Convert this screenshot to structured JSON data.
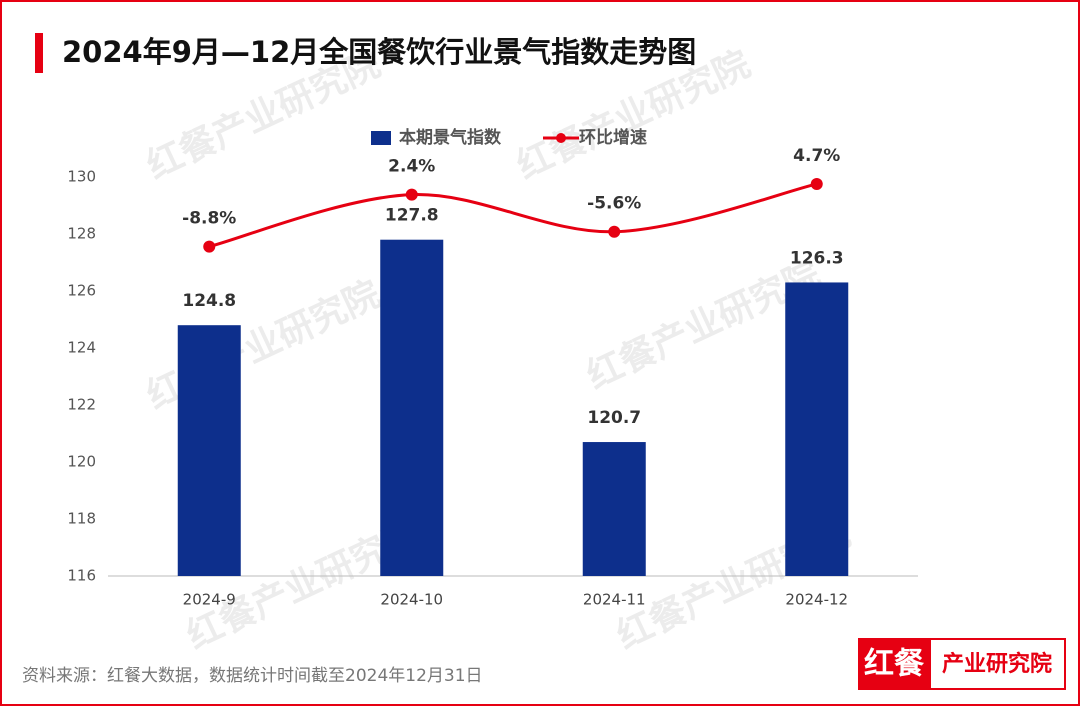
{
  "chart_data": {
    "type": "bar",
    "title": "2024年9月—12月全国餐饮行业景气指数走势图",
    "categories": [
      "2024-9",
      "2024-10",
      "2024-11",
      "2024-12"
    ],
    "series": [
      {
        "name": "本期景气指数",
        "type": "bar",
        "color": "#0d2f8c",
        "values": [
          124.8,
          127.8,
          120.7,
          126.3
        ]
      },
      {
        "name": "环比增速",
        "type": "line",
        "axis": "y2",
        "color": "#e60012",
        "values": [
          -8.8,
          2.4,
          -5.6,
          4.7
        ],
        "value_labels": [
          "-8.8%",
          "2.4%",
          "-5.6%",
          "4.7%"
        ]
      }
    ],
    "ylim": [
      116,
      130
    ],
    "yticks": [
      116,
      118,
      120,
      122,
      124,
      126,
      128,
      130
    ],
    "y2lim": [
      -79.8,
      6.2
    ],
    "grid": false,
    "legend": "top",
    "source": "资料来源：红餐大数据，数据统计时间截至2024年12月31日",
    "logo": {
      "left": "红餐",
      "right": "产业研究院"
    },
    "watermark": "红餐产业研究院"
  }
}
